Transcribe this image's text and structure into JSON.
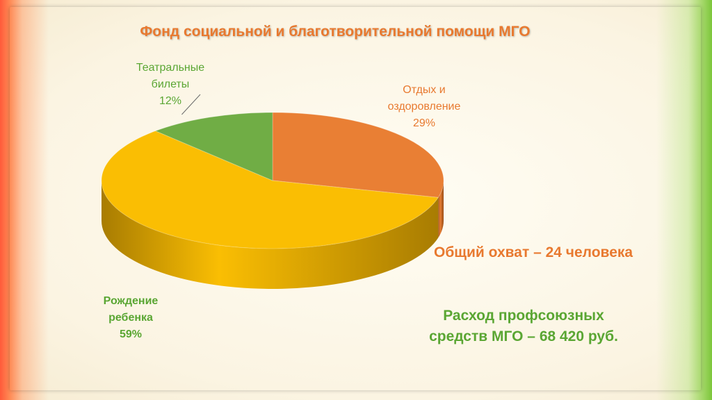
{
  "title": "Фонд социальной и благотворительной помощи МГО",
  "chart_data": {
    "type": "pie",
    "title": "Фонд социальной и благотворительной помощи МГО",
    "slices": [
      {
        "label_lines": [
          "Отдых и",
          "оздоровление"
        ],
        "percent_label": "29%",
        "value": 29,
        "color": "#e97f34",
        "side_color": "#9a4e16"
      },
      {
        "label_lines": [
          "Рождение",
          "ребенка"
        ],
        "percent_label": "59%",
        "value": 59,
        "color": "#fabe03",
        "side_color": "#a87c02"
      },
      {
        "label_lines": [
          "Театральные",
          "билеты"
        ],
        "percent_label": "12%",
        "value": 12,
        "color": "#70ad45",
        "side_color": "#43722a"
      }
    ]
  },
  "notes": {
    "coverage": "Общий охват – 24 человека",
    "expense_line1": "Расход профсоюзных",
    "expense_line2": "средств МГО – 68 420 руб."
  },
  "colors": {
    "title": "#e8792f",
    "green_text": "#5aa633",
    "orange_text": "#e8792f"
  }
}
